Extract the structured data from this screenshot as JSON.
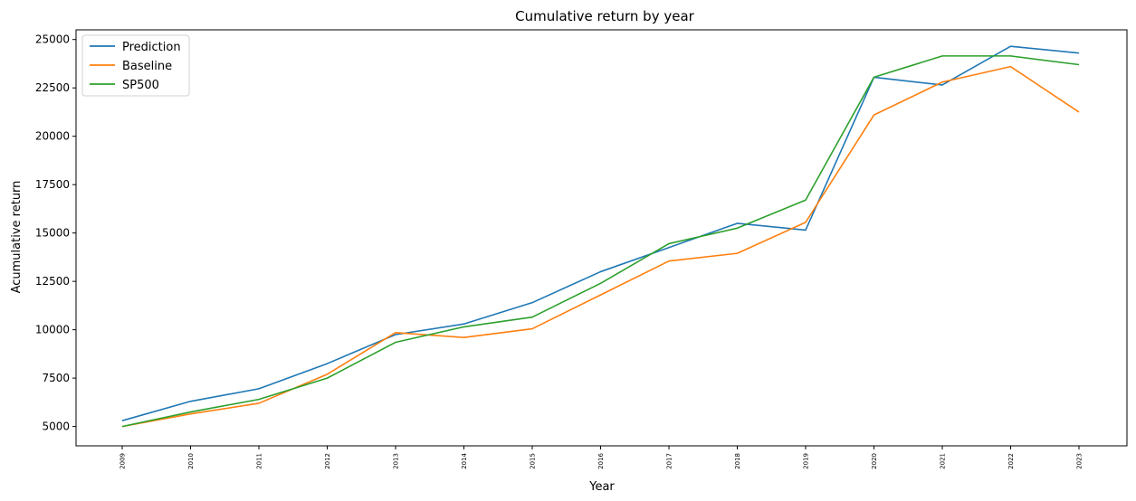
{
  "chart_data": {
    "type": "line",
    "title": "Cumulative return by year",
    "xlabel": "Year",
    "ylabel": "Acumulative return",
    "categories": [
      "2009",
      "2010",
      "2011",
      "2012",
      "2013",
      "2014",
      "2015",
      "2016",
      "2017",
      "2018",
      "2019",
      "2020",
      "2021",
      "2022",
      "2023"
    ],
    "yticks": [
      "5000",
      "7500",
      "10000",
      "12500",
      "15000",
      "17500",
      "20000",
      "22500",
      "25000"
    ],
    "ylim": [
      4000,
      25500
    ],
    "grid": false,
    "legend_position": "top-left",
    "series": [
      {
        "name": "Prediction",
        "color": "#1f77b4",
        "values": [
          5300,
          6300,
          6950,
          8250,
          9750,
          10300,
          11400,
          13000,
          14250,
          15500,
          15150,
          23050,
          22650,
          24650,
          24300
        ]
      },
      {
        "name": "Baseline",
        "color": "#ff7f0e",
        "values": [
          5000,
          5650,
          6200,
          7700,
          9850,
          9600,
          10050,
          11800,
          13550,
          13950,
          15550,
          21100,
          22800,
          23600,
          21250
        ]
      },
      {
        "name": "SP500",
        "color": "#2ca02c",
        "values": [
          5000,
          5750,
          6400,
          7500,
          9350,
          10150,
          10650,
          12400,
          14450,
          15250,
          16700,
          23050,
          24150,
          24150,
          23700
        ]
      }
    ]
  }
}
